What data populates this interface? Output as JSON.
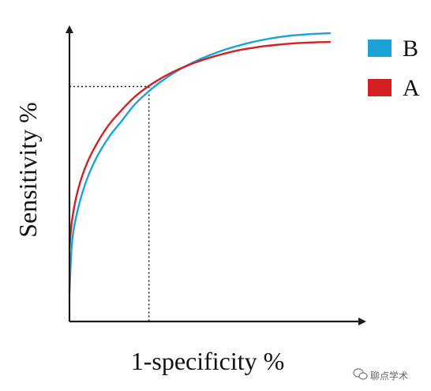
{
  "chart_data": {
    "type": "line",
    "title": "",
    "xlabel": "1-specificity %",
    "ylabel": "Sensitivity %",
    "xlim": [
      0,
      100
    ],
    "ylim": [
      0,
      100
    ],
    "grid": false,
    "legend_position": "top-right",
    "series": [
      {
        "name": "B",
        "color": "#1ba3d8",
        "x": [
          0,
          1,
          3,
          6,
          10,
          15,
          20,
          25,
          30,
          35,
          40,
          45,
          50,
          55,
          60,
          65,
          70,
          75,
          80,
          85,
          90,
          95,
          100
        ],
        "y": [
          6,
          24,
          35,
          45,
          54,
          62,
          68,
          74,
          78.5,
          82.3,
          85.5,
          88.2,
          90.5,
          92.4,
          94.1,
          95.5,
          96.7,
          97.7,
          98.5,
          99.1,
          99.5,
          99.8,
          100
        ]
      },
      {
        "name": "A",
        "color": "#d42020",
        "x": [
          0,
          1,
          3,
          6,
          10,
          15,
          20,
          25,
          30,
          35,
          40,
          45,
          50,
          55,
          60,
          65,
          70,
          75,
          80,
          85,
          90,
          95,
          100
        ],
        "y": [
          22,
          32,
          42,
          51,
          59,
          66.5,
          72,
          76.8,
          80.5,
          83.5,
          86,
          88.1,
          89.9,
          91.4,
          92.7,
          93.8,
          94.6,
          95.3,
          95.8,
          96.2,
          96.5,
          96.7,
          96.8
        ]
      }
    ],
    "annotations": [
      {
        "type": "dotted-guide",
        "x": 30.5,
        "y": 80.6
      }
    ]
  },
  "colors": {
    "axis": "#1a1a1a",
    "guide": "#222222"
  },
  "icons": {
    "watermark": "wechat-logo-icon"
  },
  "watermark": {
    "text": "聊点学术"
  }
}
